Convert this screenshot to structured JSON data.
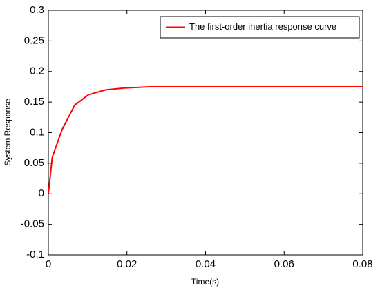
{
  "chart_data": {
    "type": "line",
    "x_label": "Time(s)",
    "y_label": "System Response",
    "x": [
      0,
      0.001,
      0.0035,
      0.0067,
      0.0102,
      0.0146,
      0.0193,
      0.026,
      0.08
    ],
    "series": [
      {
        "name": "The first-order inertia response curve",
        "color": "#ff0000",
        "values": [
          0,
          0.06,
          0.105,
          0.145,
          0.162,
          0.17,
          0.173,
          0.175,
          0.175
        ]
      }
    ],
    "xlim": [
      0,
      0.08
    ],
    "xticks": [
      0,
      0.02,
      0.04,
      0.06,
      0.08
    ],
    "ylim": [
      -0.1,
      0.3
    ],
    "yticks": [
      -0.1,
      -0.05,
      0,
      0.05,
      0.1,
      0.15,
      0.2,
      0.25,
      0.3
    ],
    "grid": false,
    "legend_position": "upper right"
  }
}
